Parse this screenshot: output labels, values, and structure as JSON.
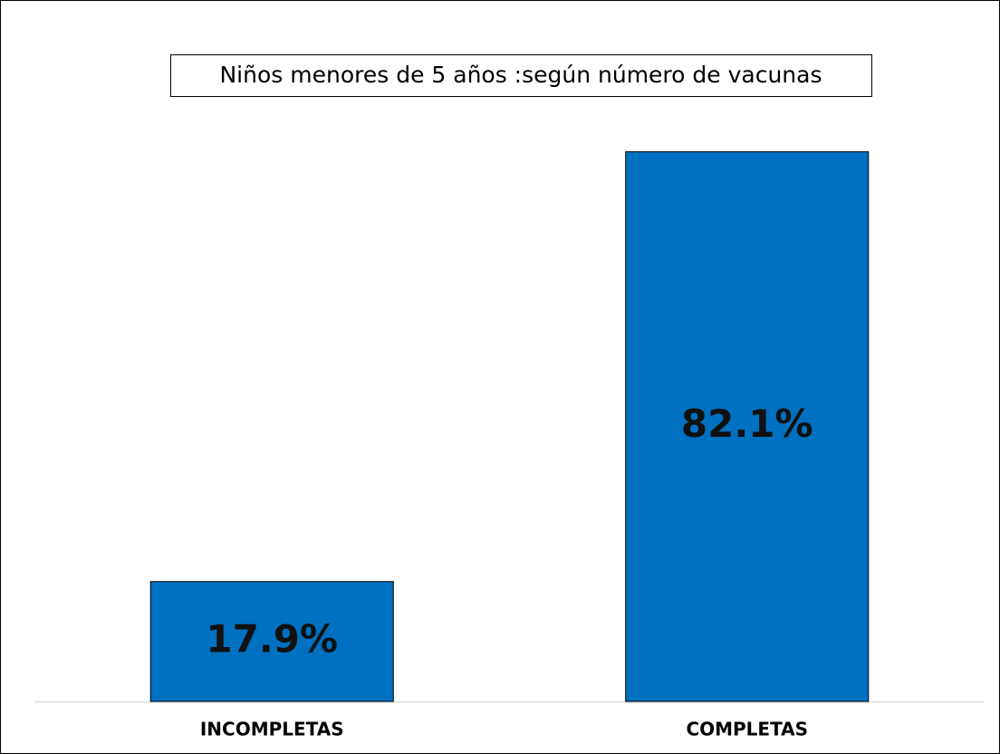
{
  "chart_data": {
    "type": "bar",
    "title": "Niños menores de 5 años :según número de vacunas",
    "categories": [
      "INCOMPLETAS",
      "COMPLETAS"
    ],
    "values": [
      17.9,
      82.1
    ],
    "value_labels": [
      "17.9%",
      "82.1%"
    ],
    "color": "#0070c0",
    "ylim": [
      0,
      90
    ]
  }
}
